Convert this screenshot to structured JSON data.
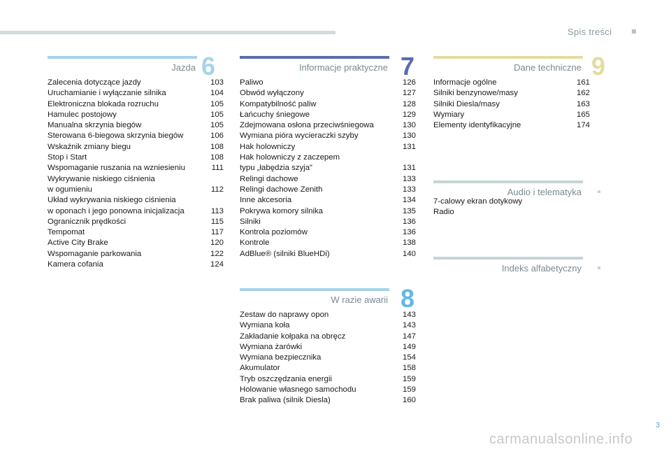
{
  "header": {
    "title": "Spis treści"
  },
  "colors": {
    "jazda": "#a6d3ea",
    "informacje": "#5a6cb0",
    "dane": "#e3dca0",
    "audio": "#c6d4d4",
    "indeks": "#c6d4d4",
    "awaria": "#a6d3ea",
    "num_jazda": "#a6d3ea",
    "num_informacje": "#5a6cb0",
    "num_dane": "#e3dca0",
    "num_awaria": "#62b8e2"
  },
  "sections": {
    "jazda": {
      "title": "Jazda",
      "number": "6",
      "items": [
        {
          "t": "Zalecenia dotyczące jazdy",
          "p": "103"
        },
        {
          "t": "Uruchamianie i wyłączanie silnika",
          "p": "104"
        },
        {
          "t": "Elektroniczna blokada rozruchu",
          "p": "105"
        },
        {
          "t": "Hamulec postojowy",
          "p": "105"
        },
        {
          "t": "Manualna skrzynia biegów",
          "p": "105"
        },
        {
          "t": "Sterowana 6-biegowa skrzynia biegów",
          "p": "106"
        },
        {
          "t": "Wskaźnik zmiany biegu",
          "p": "108"
        },
        {
          "t": "Stop i Start",
          "p": "108"
        },
        {
          "t": "Wspomaganie ruszania na wzniesieniu",
          "p": "111"
        },
        {
          "t": "Wykrywanie niskiego ciśnienia\nw ogumieniu",
          "p": "112"
        },
        {
          "t": "Układ wykrywania niskiego ciśnienia\nw oponach i jego ponowna inicjalizacja",
          "p": "113"
        },
        {
          "t": "Ogranicznik prędkości",
          "p": "115"
        },
        {
          "t": "Tempomat",
          "p": "117"
        },
        {
          "t": "Active City Brake",
          "p": "120"
        },
        {
          "t": "Wspomaganie parkowania",
          "p": "122"
        },
        {
          "t": "Kamera cofania",
          "p": "124"
        }
      ]
    },
    "informacje": {
      "title": "Informacje praktyczne",
      "number": "7",
      "items": [
        {
          "t": "Paliwo",
          "p": "126"
        },
        {
          "t": "Obwód wyłączony",
          "p": "127"
        },
        {
          "t": "Kompatybilność paliw",
          "p": "128"
        },
        {
          "t": "Łańcuchy śniegowe",
          "p": "129"
        },
        {
          "t": "Zdejmowana osłona przeciwśniegowa",
          "p": "130"
        },
        {
          "t": "Wymiana pióra wycieraczki szyby",
          "p": "130"
        },
        {
          "t": "Hak holowniczy",
          "p": "131"
        },
        {
          "t": " Hak holowniczy z zaczepem\ntypu „łabędzia szyja”",
          "p": "131"
        },
        {
          "t": "Relingi dachowe",
          "p": "133"
        },
        {
          "t": "Relingi dachowe Zenith",
          "p": "133"
        },
        {
          "t": "Inne akcesoria",
          "p": "134"
        },
        {
          "t": "Pokrywa komory silnika",
          "p": "135"
        },
        {
          "t": "Silniki",
          "p": "136"
        },
        {
          "t": "Kontrola poziomów",
          "p": "136"
        },
        {
          "t": "Kontrole",
          "p": "138"
        },
        {
          "t": "AdBlue® (silniki BlueHDi)",
          "p": "140"
        }
      ]
    },
    "dane": {
      "title": "Dane techniczne",
      "number": "9",
      "items": [
        {
          "t": "Informacje ogólne",
          "p": "161"
        },
        {
          "t": "Silniki benzynowe/masy",
          "p": "162"
        },
        {
          "t": "Silniki Diesla/masy",
          "p": "163"
        },
        {
          "t": "Wymiary",
          "p": "165"
        },
        {
          "t": "Elementy identyfikacyjne",
          "p": "174"
        }
      ]
    },
    "audio": {
      "title": "Audio i telematyka",
      "items": [
        {
          "t": "7-calowy ekran dotykowy",
          "p": ""
        },
        {
          "t": "Radio",
          "p": ""
        }
      ]
    },
    "indeks": {
      "title": "Indeks alfabetyczny"
    },
    "awaria": {
      "title": "W razie awarii",
      "number": "8",
      "items": [
        {
          "t": "Zestaw do naprawy opon",
          "p": "143"
        },
        {
          "t": "Wymiana koła",
          "p": "143"
        },
        {
          "t": "Zakładanie kołpaka na obręcz",
          "p": "147"
        },
        {
          "t": "Wymiana żarówki",
          "p": "149"
        },
        {
          "t": "Wymiana bezpiecznika",
          "p": "154"
        },
        {
          "t": "Akumulator",
          "p": "158"
        },
        {
          "t": "Tryb oszczędzania energii",
          "p": "159"
        },
        {
          "t": "Holowanie własnego samochodu",
          "p": "159"
        },
        {
          "t": "Brak paliwa (silnik Diesla)",
          "p": "160"
        }
      ]
    }
  },
  "footer": {
    "page": "3",
    "watermark": "carmanualsonline.info"
  }
}
